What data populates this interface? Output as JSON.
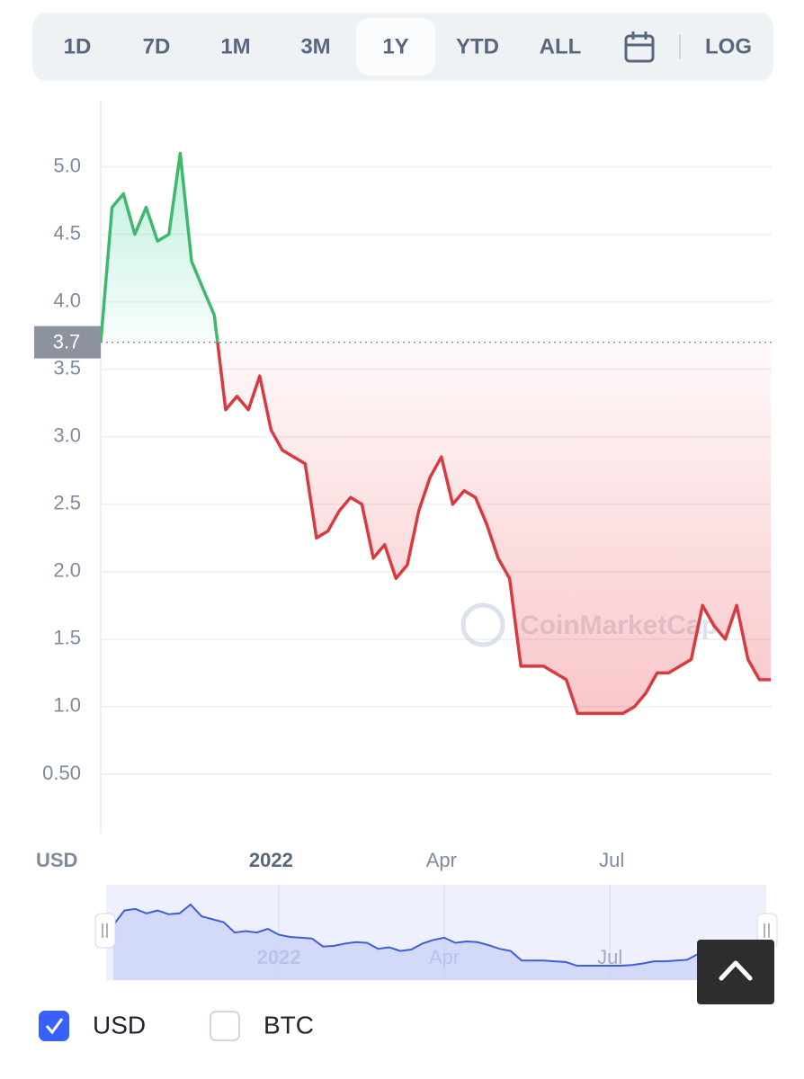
{
  "toolbar": {
    "buttons": [
      "1D",
      "7D",
      "1M",
      "3M",
      "1Y",
      "YTD",
      "ALL"
    ],
    "active": 4,
    "log_button": "LOG"
  },
  "chart_data": {
    "type": "line",
    "categories": [
      null,
      null,
      null,
      null,
      null,
      null,
      null,
      null,
      null,
      null,
      null,
      null,
      null,
      null,
      null,
      "2022",
      null,
      null,
      null,
      null,
      null,
      null,
      null,
      null,
      null,
      null,
      null,
      null,
      null,
      null,
      "Apr",
      null,
      null,
      null,
      null,
      null,
      null,
      null,
      null,
      null,
      null,
      null,
      null,
      null,
      null,
      "Jul",
      null,
      null,
      null,
      null,
      null,
      null,
      null,
      null,
      null,
      null,
      null,
      null,
      null,
      null
    ],
    "values": [
      3.7,
      4.7,
      4.8,
      4.5,
      4.7,
      4.45,
      4.5,
      5.1,
      4.3,
      4.1,
      3.9,
      3.2,
      3.3,
      3.2,
      3.45,
      3.05,
      2.9,
      2.85,
      2.8,
      2.25,
      2.3,
      2.45,
      2.55,
      2.5,
      2.1,
      2.2,
      1.95,
      2.05,
      2.45,
      2.7,
      2.85,
      2.5,
      2.6,
      2.55,
      2.35,
      2.1,
      1.95,
      1.3,
      1.3,
      1.3,
      1.25,
      1.2,
      0.95,
      0.95,
      0.95,
      0.95,
      0.95,
      1.0,
      1.1,
      1.25,
      1.25,
      1.3,
      1.35,
      1.75,
      1.6,
      1.5,
      1.75,
      1.35,
      1.2,
      1.2
    ],
    "color_up": "#3fb86e",
    "color_down": "#d93a40",
    "reference_line": 3.7,
    "ylim": [
      0.06,
      5.49
    ],
    "yticks": [
      {
        "value": 0.5,
        "label": "0.50"
      },
      {
        "value": 1,
        "label": "1.0"
      },
      1.5,
      {
        "value": 2,
        "label": "2.0"
      },
      2.5,
      {
        "value": 3,
        "label": "3.0"
      },
      3.5,
      {
        "value": 4,
        "label": "4.0"
      },
      4.5,
      {
        "value": 5,
        "label": "5.0"
      }
    ],
    "grid": true,
    "currency_label": "USD",
    "watermark": "CoinMarketCap"
  },
  "options": [
    {
      "label": "USD",
      "checked": true
    },
    {
      "label": "BTC",
      "checked": false
    }
  ]
}
